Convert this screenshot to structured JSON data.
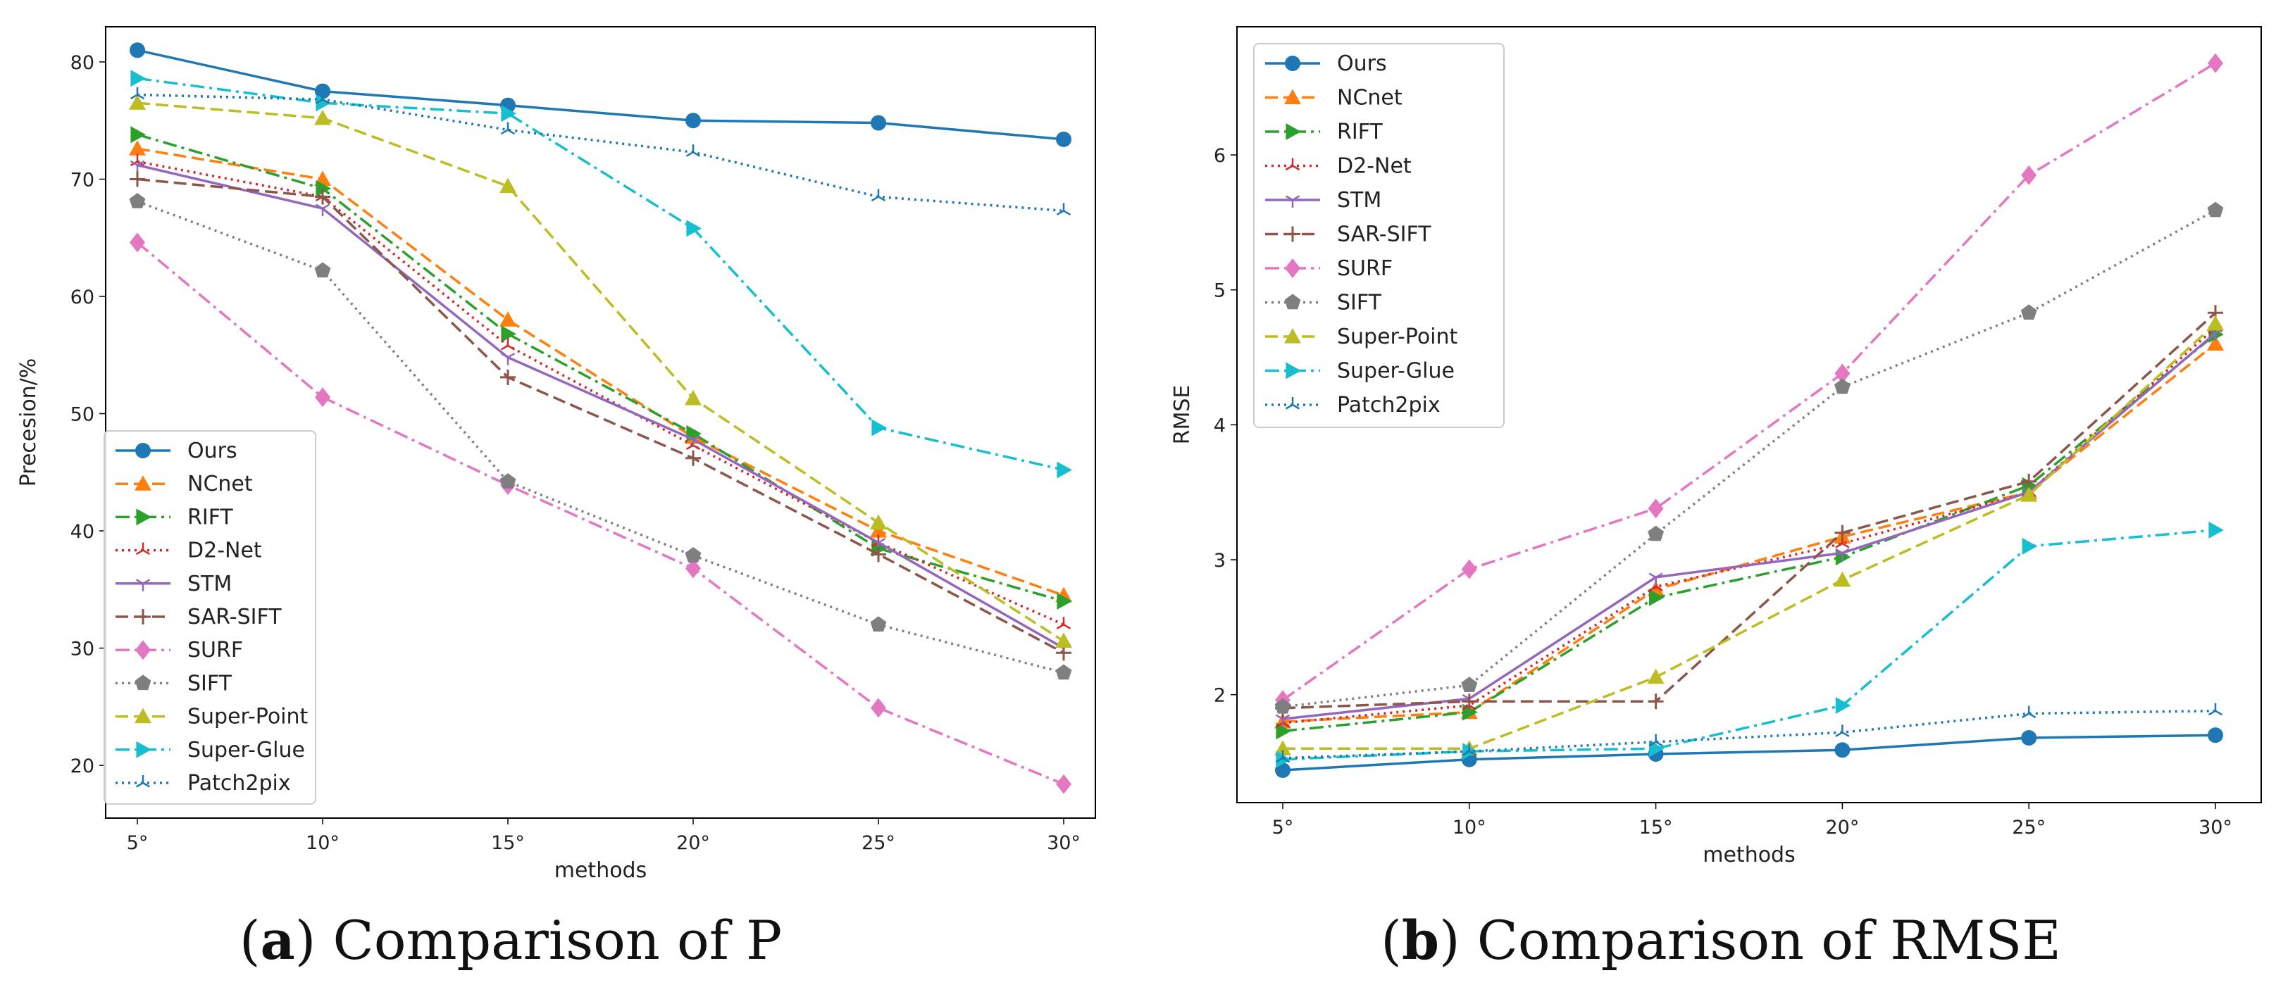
{
  "colors": {
    "Ours": "#1f77b4",
    "NCnet": "#ff7f0e",
    "RIFT": "#2ca02c",
    "D2-Net": "#d62728",
    "STM": "#9467bd",
    "SAR-SIFT": "#8c564b",
    "SURF": "#e377c2",
    "SIFT": "#7f7f7f",
    "Super-Point": "#bcbd22",
    "Super-Glue": "#17becf",
    "Patch2pix": "#1f77b4"
  },
  "chart_data": [
    {
      "type": "line",
      "id": "a",
      "caption_letter": "a",
      "caption_text": "Comparison of P",
      "categories": [
        "5°",
        "10°",
        "15°",
        "20°",
        "25°",
        "30°"
      ],
      "xlabel": "methods",
      "ylabel": "Precesion/%",
      "ylim": [
        15.5,
        83
      ],
      "yticks": [
        20,
        30,
        40,
        50,
        60,
        70,
        80
      ],
      "legend_position": "lower-left",
      "series": [
        {
          "name": "Ours",
          "values": [
            81.0,
            77.5,
            76.3,
            75.0,
            74.8,
            73.4
          ],
          "marker": "circle",
          "dash": "solid"
        },
        {
          "name": "NCnet",
          "values": [
            72.6,
            70.0,
            58.0,
            48.0,
            40.0,
            34.5
          ],
          "marker": "triangle-up",
          "dash": "dashed"
        },
        {
          "name": "RIFT",
          "values": [
            73.8,
            69.2,
            56.8,
            48.3,
            38.5,
            34.0
          ],
          "marker": "triangle-right",
          "dash": "dashdot"
        },
        {
          "name": "D2-Net",
          "values": [
            71.5,
            68.5,
            55.8,
            47.3,
            39.0,
            32.0
          ],
          "marker": "tri-star",
          "dash": "dotted"
        },
        {
          "name": "STM",
          "values": [
            71.2,
            67.5,
            54.8,
            47.8,
            39.0,
            30.0
          ],
          "marker": "tri-down",
          "dash": "solid"
        },
        {
          "name": "SAR-SIFT",
          "values": [
            70.0,
            68.5,
            53.1,
            46.2,
            38.0,
            29.6
          ],
          "marker": "plus",
          "dash": "dashed"
        },
        {
          "name": "SURF",
          "values": [
            64.6,
            51.4,
            43.9,
            36.8,
            24.9,
            18.4
          ],
          "marker": "diamond",
          "dash": "dashdot"
        },
        {
          "name": "SIFT",
          "values": [
            68.1,
            62.2,
            44.2,
            37.9,
            32.0,
            27.9
          ],
          "marker": "pentagon",
          "dash": "dotted"
        },
        {
          "name": "Super-Point",
          "values": [
            76.5,
            75.2,
            69.4,
            51.3,
            40.7,
            30.6
          ],
          "marker": "triangle-up",
          "dash": "dashed"
        },
        {
          "name": "Super-Glue",
          "values": [
            78.6,
            76.5,
            75.6,
            65.8,
            48.8,
            45.2
          ],
          "marker": "triangle-right",
          "dash": "dashdot"
        },
        {
          "name": "Patch2pix",
          "values": [
            77.2,
            76.8,
            74.2,
            72.3,
            68.5,
            67.3
          ],
          "marker": "tri-star",
          "dash": "dotted"
        }
      ]
    },
    {
      "type": "line",
      "id": "b",
      "caption_letter": "b",
      "caption_text": "Comparison of RMSE",
      "categories": [
        "5°",
        "10°",
        "15°",
        "20°",
        "25°",
        "30°"
      ],
      "xlabel": "methods",
      "ylabel": "RMSE",
      "ylim": [
        1.2,
        6.95
      ],
      "yticks": [
        2,
        3,
        4,
        5,
        6
      ],
      "legend_position": "upper-left",
      "series": [
        {
          "name": "Ours",
          "values": [
            1.44,
            1.52,
            1.56,
            1.59,
            1.68,
            1.7
          ],
          "marker": "circle",
          "dash": "solid"
        },
        {
          "name": "NCnet",
          "values": [
            1.8,
            1.87,
            2.78,
            3.17,
            3.5,
            4.6
          ],
          "marker": "triangle-up",
          "dash": "dashed"
        },
        {
          "name": "RIFT",
          "values": [
            1.73,
            1.87,
            2.72,
            3.02,
            3.55,
            4.67
          ],
          "marker": "triangle-right",
          "dash": "dashdot"
        },
        {
          "name": "D2-Net",
          "values": [
            1.79,
            1.92,
            2.8,
            3.12,
            3.5,
            4.72
          ],
          "marker": "tri-star",
          "dash": "dotted"
        },
        {
          "name": "STM",
          "values": [
            1.82,
            1.97,
            2.87,
            3.05,
            3.5,
            4.68
          ],
          "marker": "tri-down",
          "dash": "solid"
        },
        {
          "name": "SAR-SIFT",
          "values": [
            1.9,
            1.95,
            1.95,
            3.2,
            3.58,
            4.83
          ],
          "marker": "plus",
          "dash": "dashed"
        },
        {
          "name": "SURF",
          "values": [
            1.96,
            2.93,
            3.38,
            4.38,
            5.85,
            6.68
          ],
          "marker": "diamond",
          "dash": "dashdot"
        },
        {
          "name": "SIFT",
          "values": [
            1.91,
            2.07,
            3.19,
            4.28,
            4.83,
            5.59
          ],
          "marker": "pentagon",
          "dash": "dotted"
        },
        {
          "name": "Super-Point",
          "values": [
            1.6,
            1.6,
            2.13,
            2.85,
            3.48,
            4.75
          ],
          "marker": "triangle-up",
          "dash": "dashed"
        },
        {
          "name": "Super-Glue",
          "values": [
            1.52,
            1.58,
            1.6,
            1.92,
            3.1,
            3.22
          ],
          "marker": "triangle-right",
          "dash": "dashdot"
        },
        {
          "name": "Patch2pix",
          "values": [
            1.53,
            1.58,
            1.65,
            1.72,
            1.86,
            1.88
          ],
          "marker": "tri-star",
          "dash": "dotted"
        }
      ]
    }
  ]
}
